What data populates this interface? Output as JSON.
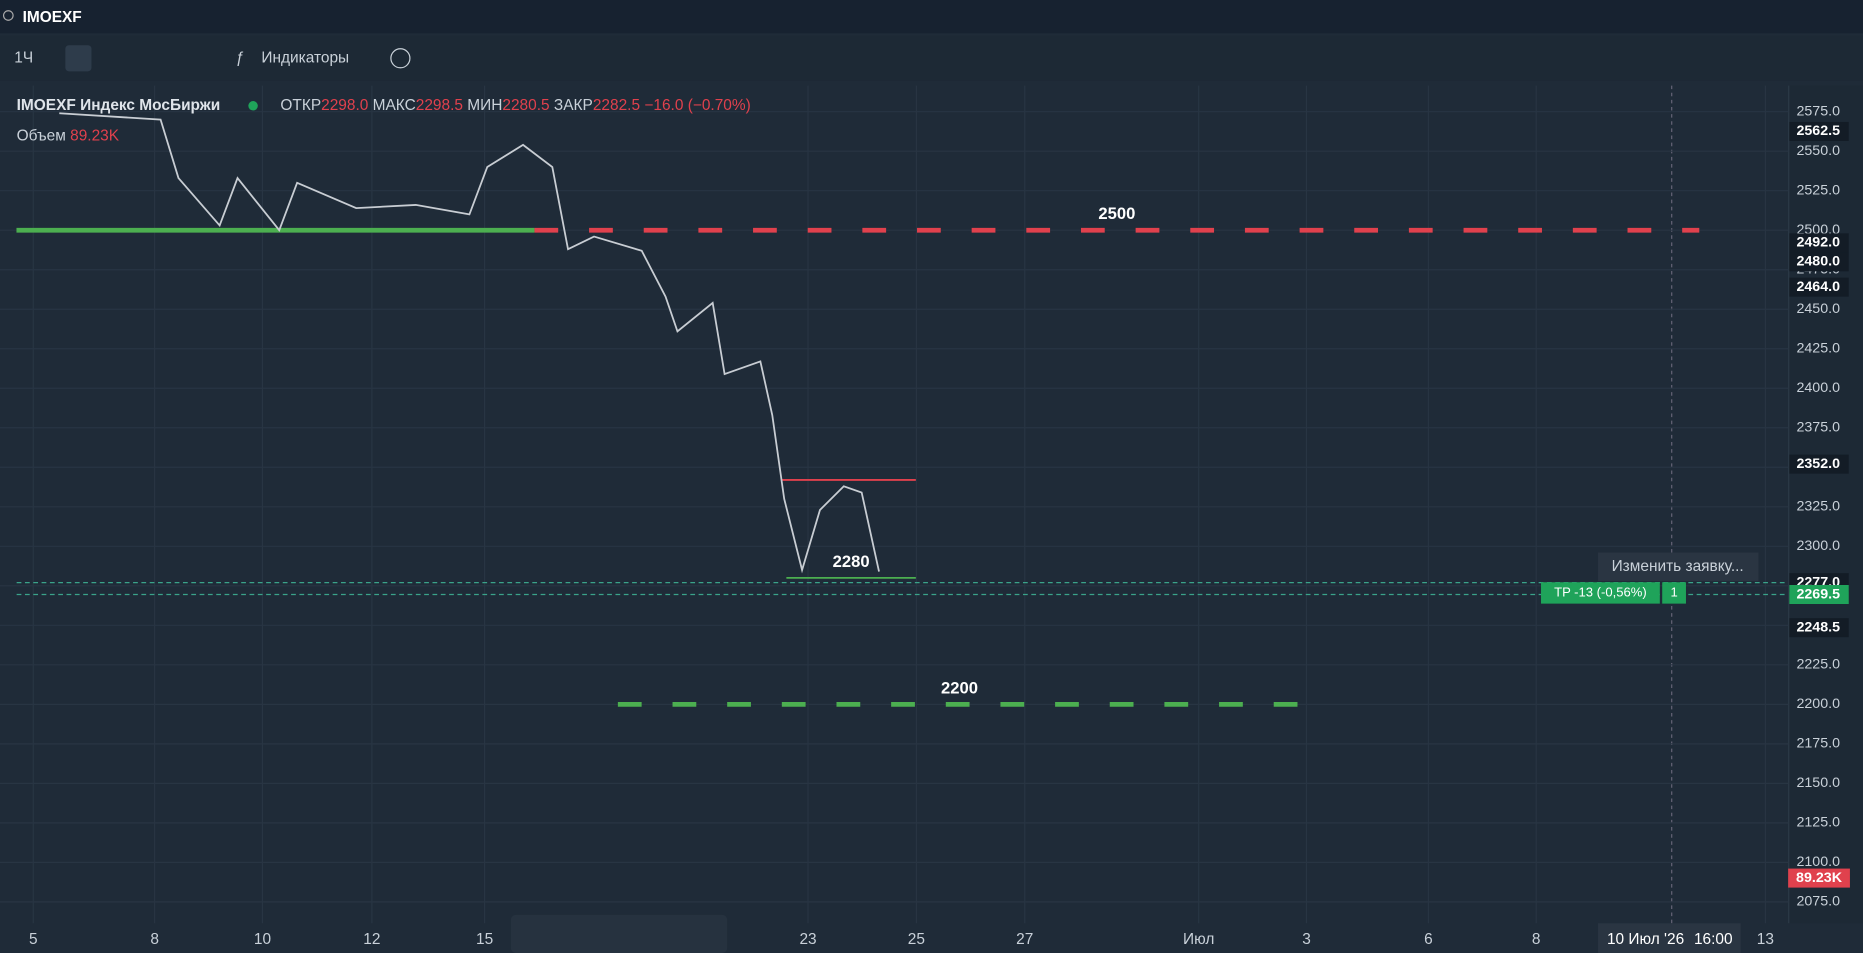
{
  "ui": {
    "search": "IMOEXF",
    "interval": "1Ч",
    "indicators": "Индикаторы",
    "legend": {
      "symbol": "IMOEXF Индекс МосБиржи",
      "open_label": "ОТКР",
      "open": "2298.0",
      "high_label": "МАКС",
      "high": "2298.5",
      "low_label": "МИН",
      "low": "2280.5",
      "close_label": "ЗАКР",
      "close": "2282.5",
      "change": "−16.0 (−0.70%)"
    },
    "volume_label": "Объем",
    "volume": "89.23K",
    "volume_tag": "89.23K",
    "order_menu": "Изменить заявку...",
    "order_tag": "TP -13 (-0,56%)",
    "order_qty": "1",
    "date_cursor": "10 Июл '26",
    "time_cursor": "16:00"
  },
  "chart_data": {
    "type": "line",
    "color": "#c8cdd3",
    "x": [
      0.48,
      2.35,
      2.68,
      3.44,
      3.77,
      4.54,
      4.87,
      5.96,
      7.06,
      8.05,
      8.38,
      9.04,
      9.58,
      9.87,
      10.35,
      11.23,
      11.67,
      11.89,
      12.54,
      12.76,
      13.42,
      13.64,
      13.86,
      14.19,
      14.52,
      14.96,
      15.29,
      15.61
    ],
    "values": [
      2574,
      2570,
      2533,
      2503,
      2533,
      2500,
      2530,
      2514,
      2516,
      2510,
      2540,
      2554,
      2540,
      2488,
      2496,
      2487,
      2458,
      2436,
      2454,
      2409,
      2417,
      2383,
      2330,
      2285,
      2323,
      2338,
      2334,
      2284
    ],
    "xlim": [
      -0.614,
      32.39
    ],
    "xticks": [
      {
        "value": 0,
        "label": "5"
      },
      {
        "value": 2.24,
        "label": "8"
      },
      {
        "value": 4.23,
        "label": "10"
      },
      {
        "value": 6.25,
        "label": "12"
      },
      {
        "value": 8.33,
        "label": "15"
      },
      {
        "value": 14.3,
        "label": "23"
      },
      {
        "value": 16.3,
        "label": "25"
      },
      {
        "value": 18.3,
        "label": "27"
      },
      {
        "value": 21.51,
        "label": "Июл"
      },
      {
        "value": 23.5,
        "label": "3"
      },
      {
        "value": 25.75,
        "label": "6"
      },
      {
        "value": 27.74,
        "label": "8"
      },
      {
        "value": 31.97,
        "label": "13"
      }
    ],
    "ylim": [
      2061.5,
      2591.5
    ],
    "yticks": [
      {
        "value": 2075,
        "label": "2075.0"
      },
      {
        "value": 2100,
        "label": "2100.0"
      },
      {
        "value": 2125,
        "label": "2125.0"
      },
      {
        "value": 2150,
        "label": "2150.0"
      },
      {
        "value": 2175,
        "label": "2175.0"
      },
      {
        "value": 2200,
        "label": "2200.0"
      },
      {
        "value": 2225,
        "label": "2225.0"
      },
      {
        "value": 2250,
        "label": "2250.0"
      },
      {
        "value": 2275,
        "label": "2275.0"
      },
      {
        "value": 2300,
        "label": "2300.0"
      },
      {
        "value": 2325,
        "label": "2325.0"
      },
      {
        "value": 2350,
        "label": "2350.0"
      },
      {
        "value": 2375,
        "label": "2375.0"
      },
      {
        "value": 2400,
        "label": "2400.0"
      },
      {
        "value": 2425,
        "label": "2425.0"
      },
      {
        "value": 2450,
        "label": "2450.0"
      },
      {
        "value": 2475,
        "label": "2475.0"
      },
      {
        "value": 2500,
        "label": "2500.0"
      },
      {
        "value": 2525,
        "label": "2525.0"
      },
      {
        "value": 2550,
        "label": "2550.0"
      },
      {
        "value": 2575,
        "label": "2575.0"
      }
    ],
    "grid": true,
    "levels": [
      {
        "value": 2500,
        "label": "2500",
        "color": "#e0414d",
        "dashed": true,
        "x0": 9.25,
        "x1": 30.75
      },
      {
        "value": 2500,
        "color": "#4caf50",
        "dashed": false,
        "x0": -0.31,
        "x1": 9.25
      },
      {
        "value": 2200,
        "label": "2200",
        "color": "#4caf50",
        "dashed": true,
        "x0": 10.79,
        "x1": 23.4
      },
      {
        "value": 2342,
        "color": "#e0414d",
        "dashed": false,
        "x0": 13.82,
        "x1": 16.29
      },
      {
        "value": 2280,
        "label": "2280",
        "color": "#4caf50",
        "dashed": false,
        "x0": 13.9,
        "x1": 16.29
      }
    ],
    "price_labels": [
      {
        "value": 2562.5,
        "label": "2562.5"
      },
      {
        "value": 2492,
        "label": "2492.0"
      },
      {
        "value": 2480,
        "label": "2480.0"
      },
      {
        "value": 2464,
        "label": "2464.0"
      },
      {
        "value": 2352,
        "label": "2352.0"
      },
      {
        "value": 2277,
        "label": "2277.0"
      },
      {
        "value": 2269.5,
        "label": "2269.5",
        "color": "#1fa35a"
      },
      {
        "value": 2248.5,
        "label": "2248.5"
      }
    ]
  }
}
